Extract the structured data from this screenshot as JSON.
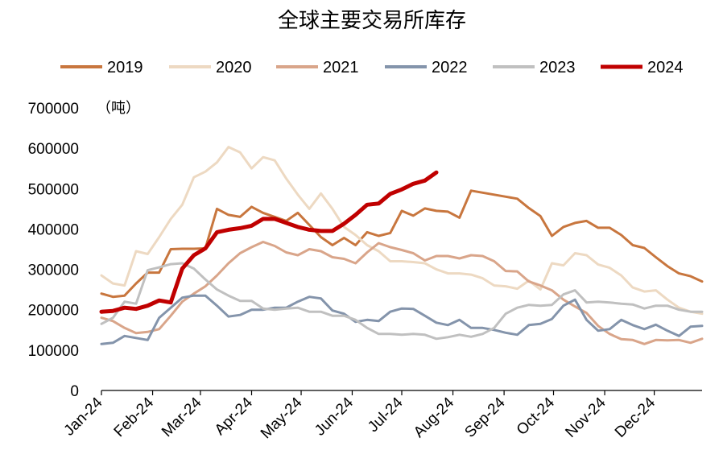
{
  "chart_data": {
    "type": "line",
    "title": "全球主要交易所库存",
    "unit_label": "（吨）",
    "xlabel": "",
    "ylabel": "",
    "ylim": [
      0,
      700000
    ],
    "y_ticks": [
      "0",
      "100000",
      "200000",
      "300000",
      "400000",
      "500000",
      "600000",
      "700000"
    ],
    "x_range": [
      0,
      52
    ],
    "x_ticks": [
      {
        "label": "Jan-24",
        "x": 0
      },
      {
        "label": "Feb-24",
        "x": 4.43
      },
      {
        "label": "Mar-24",
        "x": 8.57
      },
      {
        "label": "Apr-24",
        "x": 13
      },
      {
        "label": "May-24",
        "x": 17.29
      },
      {
        "label": "Jun-24",
        "x": 21.71
      },
      {
        "label": "Jul-24",
        "x": 26
      },
      {
        "label": "Aug-24",
        "x": 30.43
      },
      {
        "label": "Sep-24",
        "x": 34.86
      },
      {
        "label": "Oct-24",
        "x": 39.14
      },
      {
        "label": "Nov-24",
        "x": 43.57
      },
      {
        "label": "Dec-24",
        "x": 47.86
      }
    ],
    "grid": false,
    "legend_position": "top",
    "series": [
      {
        "name": "2019",
        "color": "#C8763E",
        "width": 3,
        "values": [
          240000,
          232000,
          235000,
          265000,
          292000,
          292000,
          350000,
          351000,
          351000,
          352000,
          450000,
          435000,
          430000,
          455000,
          440000,
          430000,
          420000,
          440000,
          410000,
          380000,
          360000,
          378000,
          360000,
          392000,
          383000,
          390000,
          445000,
          433000,
          451000,
          445000,
          443000,
          428000,
          495000,
          490000,
          485000,
          480000,
          475000,
          452000,
          432000,
          383000,
          405000,
          415000,
          420000,
          403000,
          403000,
          385000,
          360000,
          353000,
          330000,
          308000,
          290000,
          283000,
          270000
        ]
      },
      {
        "name": "2020",
        "color": "#EDD9C2",
        "width": 3,
        "values": [
          285000,
          265000,
          260000,
          345000,
          338000,
          380000,
          425000,
          460000,
          528000,
          542000,
          565000,
          603000,
          590000,
          550000,
          578000,
          570000,
          525000,
          485000,
          450000,
          488000,
          450000,
          405000,
          385000,
          360000,
          345000,
          320000,
          320000,
          318000,
          315000,
          300000,
          290000,
          290000,
          287000,
          278000,
          260000,
          258000,
          252000,
          272000,
          250000,
          315000,
          310000,
          340000,
          335000,
          312000,
          304000,
          285000,
          255000,
          245000,
          248000,
          225000,
          205000,
          195000,
          190000
        ]
      },
      {
        "name": "2021",
        "color": "#D9A58A",
        "width": 3,
        "values": [
          180000,
          172000,
          155000,
          142000,
          145000,
          152000,
          185000,
          220000,
          240000,
          258000,
          285000,
          315000,
          340000,
          355000,
          368000,
          358000,
          342000,
          335000,
          350000,
          345000,
          330000,
          326000,
          315000,
          342000,
          365000,
          355000,
          348000,
          340000,
          322000,
          333000,
          333000,
          327000,
          335000,
          333000,
          320000,
          296000,
          295000,
          270000,
          260000,
          248000,
          225000,
          208000,
          192000,
          160000,
          140000,
          127000,
          125000,
          115000,
          125000,
          124000,
          125000,
          118000,
          128000
        ]
      },
      {
        "name": "2022",
        "color": "#8494AB",
        "width": 3,
        "values": [
          115000,
          118000,
          135000,
          130000,
          125000,
          180000,
          205000,
          230000,
          235000,
          235000,
          210000,
          183000,
          187000,
          200000,
          200000,
          205000,
          205000,
          220000,
          232000,
          228000,
          198000,
          190000,
          170000,
          175000,
          172000,
          195000,
          203000,
          202000,
          185000,
          168000,
          162000,
          175000,
          155000,
          155000,
          150000,
          143000,
          138000,
          162000,
          165000,
          177000,
          210000,
          225000,
          175000,
          148000,
          152000,
          175000,
          162000,
          152000,
          163000,
          148000,
          135000,
          158000,
          160000
        ]
      },
      {
        "name": "2023",
        "color": "#C0C0C0",
        "width": 3,
        "values": [
          165000,
          180000,
          220000,
          215000,
          298000,
          305000,
          313000,
          315000,
          302000,
          275000,
          250000,
          235000,
          222000,
          222000,
          203000,
          200000,
          203000,
          205000,
          195000,
          195000,
          185000,
          185000,
          175000,
          155000,
          140000,
          140000,
          138000,
          140000,
          138000,
          128000,
          132000,
          138000,
          133000,
          140000,
          155000,
          190000,
          205000,
          212000,
          210000,
          212000,
          238000,
          248000,
          218000,
          220000,
          218000,
          215000,
          213000,
          203000,
          210000,
          210000,
          200000,
          195000,
          195000
        ]
      },
      {
        "name": "2024",
        "color": "#C00000",
        "width": 5,
        "values": [
          195000,
          197000,
          205000,
          202000,
          210000,
          223000,
          218000,
          302000,
          335000,
          352000,
          392000,
          398000,
          402000,
          408000,
          425000,
          425000,
          415000,
          405000,
          398000,
          395000,
          395000,
          413000,
          435000,
          460000,
          463000,
          487000,
          498000,
          512000,
          520000,
          540000
        ]
      }
    ]
  }
}
